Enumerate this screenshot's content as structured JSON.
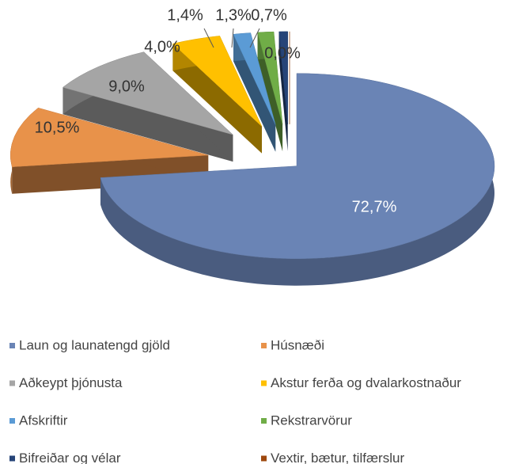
{
  "chart_data": {
    "type": "pie",
    "categories": [
      "Laun og launatengd gjöld",
      "Húsnæði",
      "Aðkeypt þjónusta",
      "Akstur ferða og dvalarkostnaður",
      "Afskriftir",
      "Rekstrarvörur",
      "Bifreiðar og vélar",
      "Vextir, bætur, tilfærslur"
    ],
    "values": [
      72.7,
      10.5,
      9.0,
      4.0,
      1.4,
      1.3,
      0.7,
      0.0
    ],
    "value_labels": [
      "72,7%",
      "10,5%",
      "9,0%",
      "4,0%",
      "1,4%",
      "1,3%",
      "0,7%",
      "0,0%"
    ],
    "colors": [
      "#6a84b5",
      "#e8924a",
      "#a5a5a5",
      "#ffc000",
      "#5b9bd5",
      "#70ad47",
      "#264478",
      "#9e480e"
    ],
    "legend": "bottom"
  }
}
